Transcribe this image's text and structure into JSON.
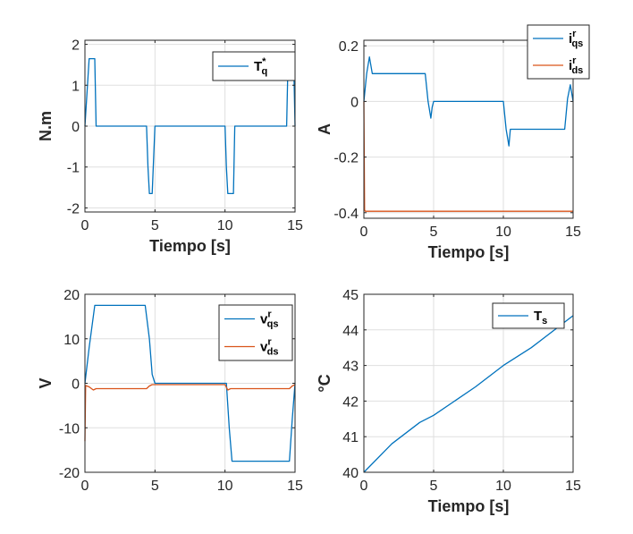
{
  "colors": {
    "blue": "#0072BD",
    "orange": "#D95319",
    "grid": "#dfdfdf",
    "axis": "#262626"
  },
  "chart_data": [
    {
      "type": "line",
      "xlabel": "Tiempo [s]",
      "ylabel": "N.m",
      "xlim": [
        0,
        15
      ],
      "ylim": [
        -2.1,
        2.1
      ],
      "xticks": [
        0,
        5,
        10,
        15
      ],
      "yticks": [
        -2,
        -1,
        0,
        1,
        2
      ],
      "grid": true,
      "legend_position": "top-right",
      "series": [
        {
          "legend": {
            "base": "T",
            "sup": "*",
            "sub": "q"
          },
          "color": "blue",
          "x": [
            0,
            0.3,
            0.5,
            0.7,
            0.8,
            4.4,
            4.5,
            4.6,
            4.7,
            4.8,
            5,
            10,
            10.1,
            10.2,
            10.4,
            10.6,
            10.7,
            14.4,
            14.5,
            14.7,
            14.9,
            15
          ],
          "y": [
            0,
            1.65,
            1.65,
            1.65,
            0,
            0,
            -1.0,
            -1.65,
            -1.65,
            -1.65,
            0,
            0,
            -1.0,
            -1.65,
            -1.65,
            -1.65,
            0,
            0,
            1.65,
            1.65,
            1.65,
            0
          ]
        }
      ]
    },
    {
      "type": "line",
      "xlabel": "Tiempo [s]",
      "ylabel": "A",
      "xlim": [
        0,
        15
      ],
      "ylim": [
        -0.42,
        0.22
      ],
      "xticks": [
        0,
        5,
        10,
        15
      ],
      "yticks": [
        -0.4,
        -0.2,
        0,
        0.2
      ],
      "grid": true,
      "legend_position": "top-right",
      "series": [
        {
          "legend": {
            "base": "i",
            "sup": "r",
            "sub": "qs"
          },
          "color": "blue",
          "x": [
            0,
            0.2,
            0.4,
            0.6,
            0.7,
            4.4,
            4.6,
            4.8,
            4.9,
            5.0,
            10.0,
            10.2,
            10.4,
            10.5,
            14.4,
            14.6,
            14.8,
            15
          ],
          "y": [
            0,
            0.1,
            0.16,
            0.1,
            0.1,
            0.1,
            0.0,
            -0.06,
            -0.02,
            0,
            0,
            -0.1,
            -0.16,
            -0.1,
            -0.1,
            0.01,
            0.06,
            0
          ]
        },
        {
          "legend": {
            "base": "i",
            "sup": "r",
            "sub": "ds"
          },
          "color": "orange",
          "x": [
            0,
            0.05,
            0.1,
            15
          ],
          "y": [
            0,
            -0.39,
            -0.395,
            -0.395
          ]
        }
      ]
    },
    {
      "type": "line",
      "xlabel": "",
      "ylabel": "V",
      "xlim": [
        0,
        15
      ],
      "ylim": [
        -20,
        20
      ],
      "xticks": [
        0,
        5,
        10,
        15
      ],
      "yticks": [
        -20,
        -10,
        0,
        10,
        20
      ],
      "grid": true,
      "legend_position": "top-right",
      "series": [
        {
          "legend": {
            "base": "v",
            "sup": "r",
            "sub": "qs"
          },
          "color": "blue",
          "x": [
            0,
            0.3,
            0.7,
            4.3,
            4.6,
            4.8,
            5.0,
            10.1,
            10.3,
            10.5,
            14.6,
            14.8,
            15
          ],
          "y": [
            0,
            8,
            17.5,
            17.5,
            10,
            2,
            0,
            0,
            -10,
            -17.5,
            -17.5,
            -8,
            0
          ]
        },
        {
          "legend": {
            "base": "v",
            "sup": "r",
            "sub": "ds"
          },
          "color": "orange",
          "x": [
            0,
            0.05,
            0.3,
            0.6,
            0.8,
            4.4,
            4.6,
            4.8,
            10,
            10.2,
            10.4,
            14.6,
            14.8,
            15
          ],
          "y": [
            -13,
            -0.5,
            -0.8,
            -1.5,
            -1.2,
            -1.2,
            -0.6,
            -0.3,
            -0.3,
            -1.5,
            -1.2,
            -1.2,
            -0.6,
            -0.3
          ]
        }
      ]
    },
    {
      "type": "line",
      "xlabel": "Tiempo [s]",
      "ylabel": "°C",
      "xlim": [
        0,
        15
      ],
      "ylim": [
        40,
        45
      ],
      "xticks": [
        0,
        5,
        10,
        15
      ],
      "yticks": [
        40,
        41,
        42,
        43,
        44,
        45
      ],
      "grid": true,
      "legend_position": "top-right",
      "series": [
        {
          "legend": {
            "base": "T",
            "sup": "",
            "sub": "s"
          },
          "color": "blue",
          "x": [
            0,
            2,
            4,
            5,
            8,
            10,
            12,
            15
          ],
          "y": [
            40,
            40.8,
            41.4,
            41.6,
            42.4,
            43.0,
            43.5,
            44.4
          ]
        }
      ]
    }
  ]
}
